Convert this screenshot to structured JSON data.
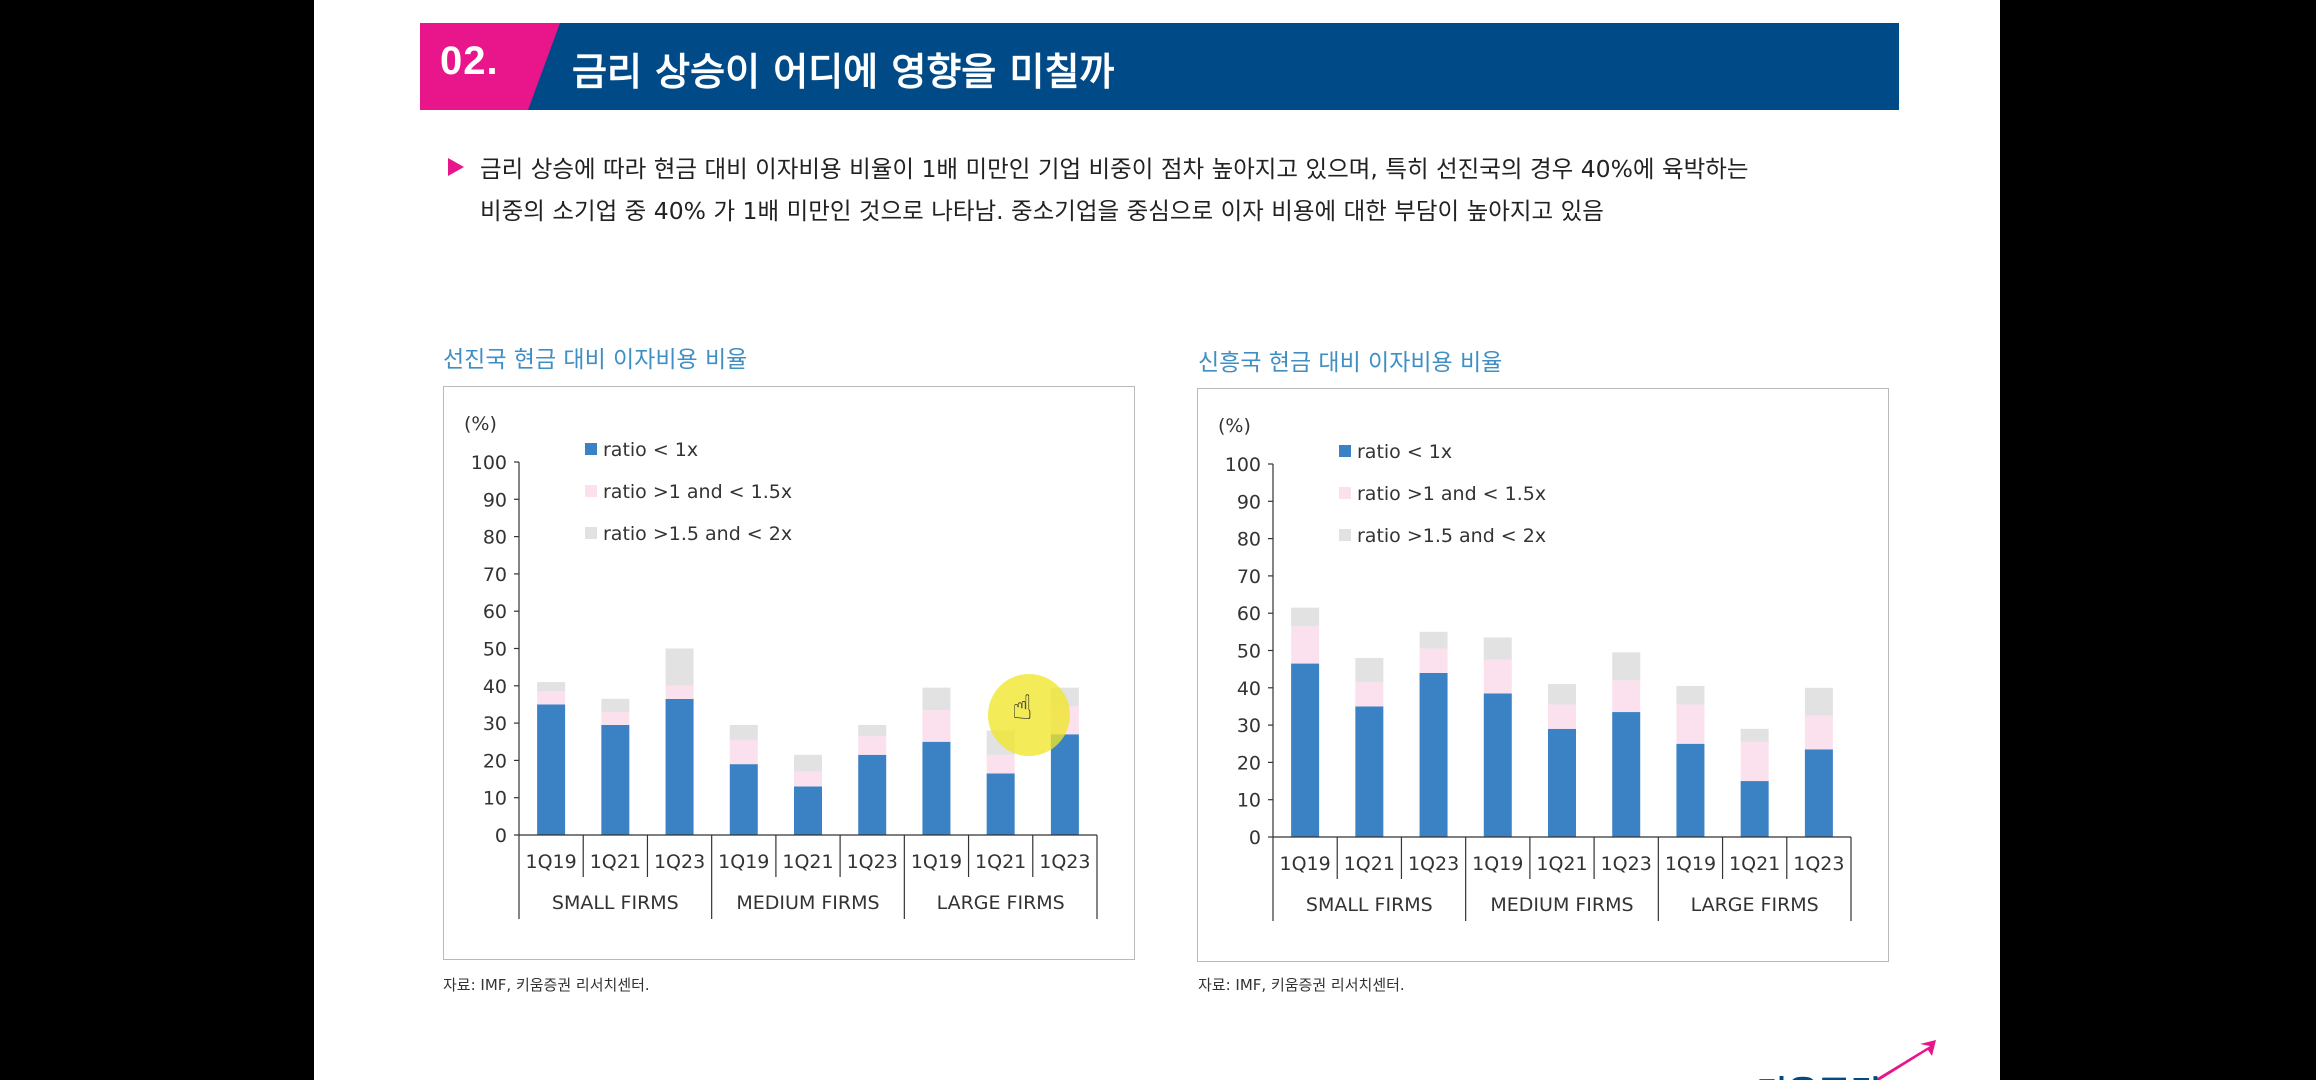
{
  "slide": {
    "number": "02.",
    "title": "금리 상승이 어디에 영향을 미칠까",
    "bullet_line1": "금리 상승에 따라 현금 대비 이자비용 비율이 1배 미만인 기업 비중이 점차 높아지고 있으며, 특히 선진국의 경우 40%에 육박하는",
    "bullet_line2": "비중의 소기업 중 40% 가 1배 미만인 것으로 나타남. 중소기업을 중심으로 이자 비용에 대한 부담이 높아지고 있음",
    "logo_text": "키움증권",
    "colors": {
      "pink": "#e8158b",
      "navy": "#004a88",
      "title_blue": "#3f8fc4"
    }
  },
  "charts": [
    {
      "heading": "선진국 현금 대비 이자비용 비율",
      "source": "자료: IMF, 키움증권 리서치센터."
    },
    {
      "heading": "신흥국 현금 대비 이자비용 비율",
      "source": "자료: IMF, 키움증권 리서치센터."
    }
  ],
  "chart_data": [
    {
      "type": "bar",
      "stacked": true,
      "title": "선진국 현금 대비 이자비용 비율",
      "ylabel": "(%)",
      "ylim": [
        0,
        100
      ],
      "yticks": [
        0,
        10,
        20,
        30,
        40,
        50,
        60,
        70,
        80,
        90,
        100
      ],
      "categories": [
        "1Q19",
        "1Q21",
        "1Q23",
        "1Q19",
        "1Q21",
        "1Q23",
        "1Q19",
        "1Q21",
        "1Q23"
      ],
      "groups": [
        "SMALL FIRMS",
        "MEDIUM FIRMS",
        "LARGE FIRMS"
      ],
      "legend_position": "top-left",
      "grid": false,
      "series": [
        {
          "name": "ratio < 1x",
          "color": "#3b82c4",
          "values": [
            35,
            29.5,
            36.5,
            19,
            13,
            21.5,
            25,
            16.5,
            27
          ]
        },
        {
          "name": "ratio >1 and < 1.5x",
          "color": "#fbe1ee",
          "values": [
            3.5,
            3.5,
            3.5,
            6.5,
            4,
            5,
            8.5,
            5,
            7.5
          ]
        },
        {
          "name": "ratio >1.5 and < 2x",
          "color": "#e2e2e2",
          "values": [
            2.5,
            3.5,
            10,
            4,
            4.5,
            3,
            6,
            6.5,
            5
          ]
        }
      ]
    },
    {
      "type": "bar",
      "stacked": true,
      "title": "신흥국 현금 대비 이자비용 비율",
      "ylabel": "(%)",
      "ylim": [
        0,
        100
      ],
      "yticks": [
        0,
        10,
        20,
        30,
        40,
        50,
        60,
        70,
        80,
        90,
        100
      ],
      "categories": [
        "1Q19",
        "1Q21",
        "1Q23",
        "1Q19",
        "1Q21",
        "1Q23",
        "1Q19",
        "1Q21",
        "1Q23"
      ],
      "groups": [
        "SMALL FIRMS",
        "MEDIUM FIRMS",
        "LARGE FIRMS"
      ],
      "legend_position": "top-left",
      "grid": false,
      "series": [
        {
          "name": "ratio < 1x",
          "color": "#3b82c4",
          "values": [
            46.5,
            35,
            44,
            38.5,
            29,
            33.5,
            25,
            15,
            23.5
          ]
        },
        {
          "name": "ratio >1 and < 1.5x",
          "color": "#fbe1ee",
          "values": [
            10,
            6.5,
            6.5,
            9,
            6.5,
            8.5,
            10.5,
            10.5,
            9
          ]
        },
        {
          "name": "ratio >1.5 and < 2x",
          "color": "#e2e2e2",
          "values": [
            5,
            6.5,
            4.5,
            6,
            5.5,
            7.5,
            5,
            3.5,
            7.5
          ]
        }
      ]
    }
  ]
}
